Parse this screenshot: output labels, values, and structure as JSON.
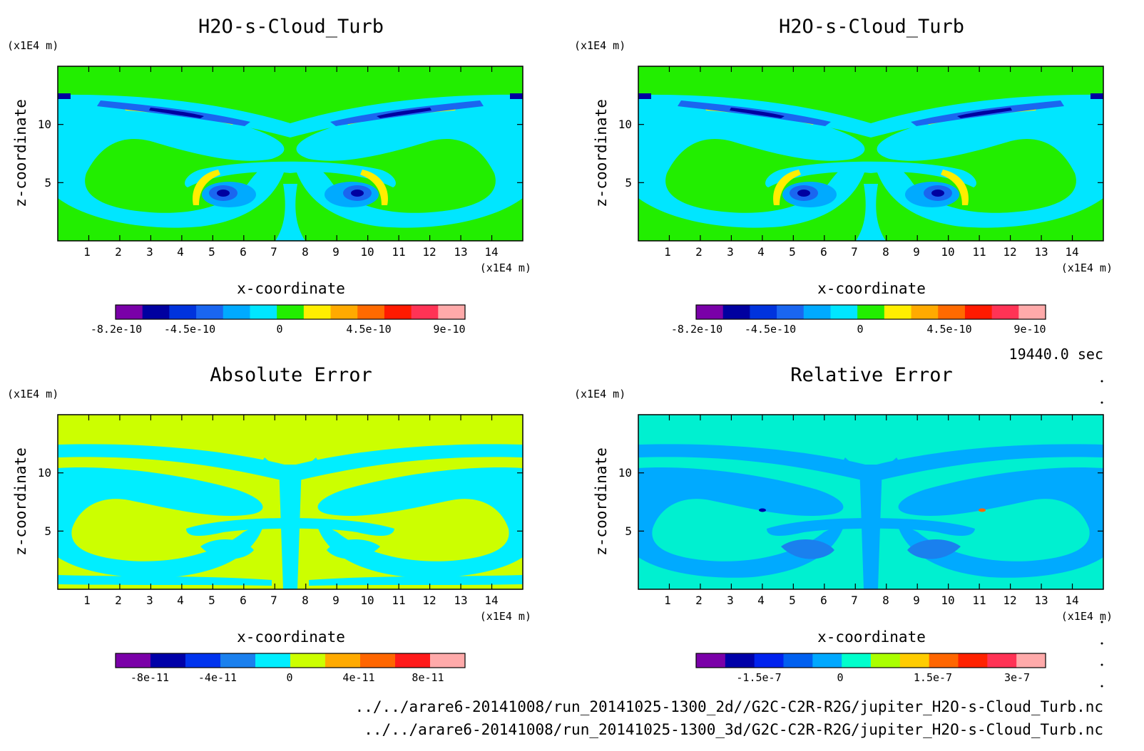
{
  "time_label": "19440.0 sec",
  "files": [
    "../../arare6-20141008/run_20141025-1300_2d//G2C-C2R-R2G/jupiter_H2O-s-Cloud_Turb.nc",
    "../../arare6-20141008/run_20141025-1300_3d/G2C-C2R-R2G/jupiter_H2O-s-Cloud_Turb.nc"
  ],
  "colors": {
    "main_scale": [
      "#7a00a8",
      "#0000a0",
      "#0033dd",
      "#1a66f0",
      "#00aaff",
      "#00e6ff",
      "#22ee00",
      "#ffee00",
      "#ffaa00",
      "#ff6a00",
      "#ff1a00",
      "#ff3355",
      "#ffaaaa"
    ],
    "abs_scale": [
      "#7a00a8",
      "#0000a8",
      "#0033ee",
      "#1a80ee",
      "#00eeff",
      "#ccff00",
      "#ffaa00",
      "#ff6600",
      "#ff1a1a",
      "#ffaaaa"
    ],
    "rel_scale": [
      "#7a00a8",
      "#0000a8",
      "#0022ee",
      "#0060f0",
      "#00a8ff",
      "#00ffcc",
      "#aaff00",
      "#ffcc00",
      "#ff6600",
      "#ff2200",
      "#ff3355",
      "#ffaaaa"
    ]
  },
  "chart_data": [
    {
      "type": "heatmap",
      "title": "H2O-s-Cloud_Turb",
      "xlabel": "x-coordinate",
      "ylabel": "z-coordinate",
      "x_unit": "(x1E4 m)",
      "y_unit": "(x1E4 m)",
      "xlim": [
        0,
        15
      ],
      "ylim": [
        0,
        15
      ],
      "x_ticks": [
        "1",
        "2",
        "3",
        "4",
        "5",
        "6",
        "7",
        "8",
        "9",
        "10",
        "11",
        "12",
        "13",
        "14"
      ],
      "y_ticks": [
        "5",
        "10"
      ],
      "colorbar_ticks": [
        "-8.2e-10",
        "-4.5e-10",
        "0",
        "4.5e-10",
        "9e-10"
      ],
      "scale": "main"
    },
    {
      "type": "heatmap",
      "title": "H2O-s-Cloud_Turb",
      "xlabel": "x-coordinate",
      "ylabel": "z-coordinate",
      "x_unit": "(x1E4 m)",
      "y_unit": "(x1E4 m)",
      "xlim": [
        0,
        15
      ],
      "ylim": [
        0,
        15
      ],
      "x_ticks": [
        "1",
        "2",
        "3",
        "4",
        "5",
        "6",
        "7",
        "8",
        "9",
        "10",
        "11",
        "12",
        "13",
        "14"
      ],
      "y_ticks": [
        "5",
        "10"
      ],
      "colorbar_ticks": [
        "-8.2e-10",
        "-4.5e-10",
        "0",
        "4.5e-10",
        "9e-10"
      ],
      "scale": "main"
    },
    {
      "type": "heatmap",
      "title": "Absolute Error",
      "xlabel": "x-coordinate",
      "ylabel": "z-coordinate",
      "x_unit": "(x1E4 m)",
      "y_unit": "(x1E4 m)",
      "xlim": [
        0,
        15
      ],
      "ylim": [
        0,
        15
      ],
      "x_ticks": [
        "1",
        "2",
        "3",
        "4",
        "5",
        "6",
        "7",
        "8",
        "9",
        "10",
        "11",
        "12",
        "13",
        "14"
      ],
      "y_ticks": [
        "5",
        "10"
      ],
      "colorbar_ticks": [
        "-8e-11",
        "-4e-11",
        "0",
        "4e-11",
        "8e-11"
      ],
      "scale": "abs"
    },
    {
      "type": "heatmap",
      "title": "Relative Error",
      "xlabel": "x-coordinate",
      "ylabel": "z-coordinate",
      "x_unit": "(x1E4 m)",
      "y_unit": "(x1E4 m)",
      "xlim": [
        0,
        15
      ],
      "ylim": [
        0,
        15
      ],
      "x_ticks": [
        "1",
        "2",
        "3",
        "4",
        "5",
        "6",
        "7",
        "8",
        "9",
        "10",
        "11",
        "12",
        "13",
        "14"
      ],
      "y_ticks": [
        "5",
        "10"
      ],
      "colorbar_ticks": [
        "-1.5e-7",
        "0",
        "1.5e-7",
        "3e-7"
      ],
      "scale": "rel"
    }
  ]
}
